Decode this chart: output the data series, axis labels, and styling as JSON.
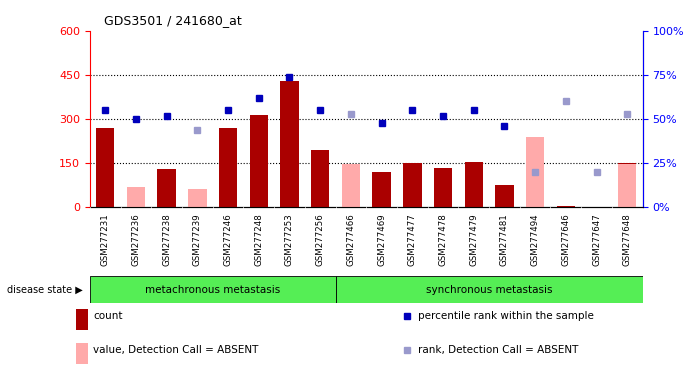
{
  "title": "GDS3501 / 241680_at",
  "samples": [
    "GSM277231",
    "GSM277236",
    "GSM277238",
    "GSM277239",
    "GSM277246",
    "GSM277248",
    "GSM277253",
    "GSM277256",
    "GSM277466",
    "GSM277469",
    "GSM277477",
    "GSM277478",
    "GSM277479",
    "GSM277481",
    "GSM277494",
    "GSM277646",
    "GSM277647",
    "GSM277648"
  ],
  "count_values": [
    270,
    0,
    130,
    0,
    270,
    315,
    430,
    195,
    0,
    120,
    150,
    135,
    155,
    75,
    0,
    5,
    0,
    150
  ],
  "count_absent": [
    0,
    68,
    0,
    62,
    0,
    0,
    0,
    0,
    148,
    0,
    0,
    0,
    0,
    0,
    238,
    0,
    0,
    148
  ],
  "percentile_rank": [
    55,
    50,
    52,
    null,
    55,
    62,
    74,
    55,
    null,
    48,
    55,
    52,
    55,
    46,
    null,
    null,
    null,
    null
  ],
  "percentile_rank_absent": [
    null,
    null,
    null,
    44,
    null,
    null,
    null,
    null,
    53,
    null,
    null,
    null,
    null,
    null,
    20,
    60,
    20,
    53
  ],
  "group1_count": 8,
  "group1_label": "metachronous metastasis",
  "group2_label": "synchronous metastasis",
  "ylim_left": [
    0,
    600
  ],
  "ylim_right": [
    0,
    100
  ],
  "yticks_left": [
    0,
    150,
    300,
    450,
    600
  ],
  "ytick_labels_left": [
    "0",
    "150",
    "300",
    "450",
    "600"
  ],
  "ytick_labels_right": [
    "0%",
    "25%",
    "50%",
    "75%",
    "100%"
  ],
  "bar_color_present": "#aa0000",
  "bar_color_absent": "#ffaaaa",
  "dot_color_present": "#0000bb",
  "dot_color_absent": "#9999cc",
  "group_color": "#55ee55",
  "gray_strip": "#d0d0d0"
}
